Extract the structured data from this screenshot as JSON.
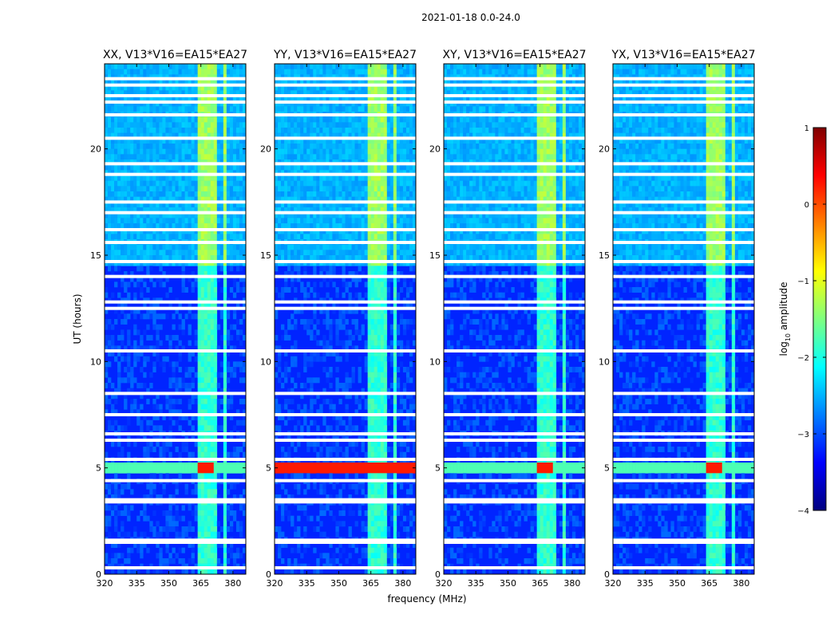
{
  "figure": {
    "suptitle": "2021-01-18 0.0-24.0",
    "xlabel": "frequency (MHz)",
    "ylabel": "UT (hours)"
  },
  "chart_data": [
    {
      "type": "heatmap",
      "title": "XX, V13*V16=EA15*EA27",
      "polarization": "XX",
      "x_range_mhz": [
        320,
        386
      ],
      "y_range_hours": [
        0,
        24
      ],
      "x_ticks": [
        320,
        335,
        350,
        365,
        380
      ],
      "y_ticks": [
        0,
        5,
        10,
        15,
        20
      ],
      "strong_rfi_hours": [
        4.8,
        5.3
      ],
      "strong_rfi_mhz": [
        364,
        371
      ]
    },
    {
      "type": "heatmap",
      "title": "YY, V13*V16=EA15*EA27",
      "polarization": "YY",
      "x_range_mhz": [
        320,
        386
      ],
      "y_range_hours": [
        0,
        24
      ],
      "x_ticks": [
        320,
        335,
        350,
        365,
        380
      ],
      "y_ticks": [
        0,
        5,
        10,
        15,
        20
      ],
      "strong_rfi_hours": [
        4.8,
        5.3
      ],
      "strong_rfi_mhz": [
        320,
        386
      ]
    },
    {
      "type": "heatmap",
      "title": "XY, V13*V16=EA15*EA27",
      "polarization": "XY",
      "x_range_mhz": [
        320,
        386
      ],
      "y_range_hours": [
        0,
        24
      ],
      "x_ticks": [
        320,
        335,
        350,
        365,
        380
      ],
      "y_ticks": [
        0,
        5,
        10,
        15,
        20
      ],
      "strong_rfi_hours": [
        4.8,
        5.3
      ],
      "strong_rfi_mhz": [
        364,
        371
      ]
    },
    {
      "type": "heatmap",
      "title": "YX, V13*V16=EA15*EA27",
      "polarization": "YX",
      "x_range_mhz": [
        320,
        386
      ],
      "y_range_hours": [
        0,
        24
      ],
      "x_ticks": [
        320,
        335,
        350,
        365,
        380
      ],
      "y_ticks": [
        0,
        5,
        10,
        15,
        20
      ],
      "strong_rfi_hours": [
        4.8,
        5.3
      ],
      "strong_rfi_mhz": [
        364,
        371
      ]
    }
  ],
  "flagged_rows_hours": [
    0.3,
    1.5,
    1.6,
    3.4,
    3.5,
    4.4,
    5.4,
    6.3,
    6.6,
    7.5,
    8.5,
    10.5,
    12.5,
    12.8,
    14.0,
    14.7,
    15.6,
    16.2,
    17.0,
    17.5,
    18.8,
    19.3,
    20.5,
    21.6,
    22.2,
    22.5,
    23.0,
    23.3
  ],
  "rfi_channels_mhz": [
    364,
    365.5,
    367,
    368.5,
    371,
    376
  ],
  "colorbar": {
    "label_prefix": "log",
    "label_sub": "10",
    "label_suffix": " amplitude",
    "min": -4,
    "max": 1,
    "ticks": [
      "1",
      "0",
      "−1",
      "−2",
      "−3",
      "−4"
    ],
    "colormap": "jet",
    "colors": [
      "#00007f",
      "#0000ff",
      "#007fff",
      "#00ffff",
      "#7fff7f",
      "#ffff00",
      "#ff7f00",
      "#ff0000",
      "#7f0000"
    ]
  }
}
